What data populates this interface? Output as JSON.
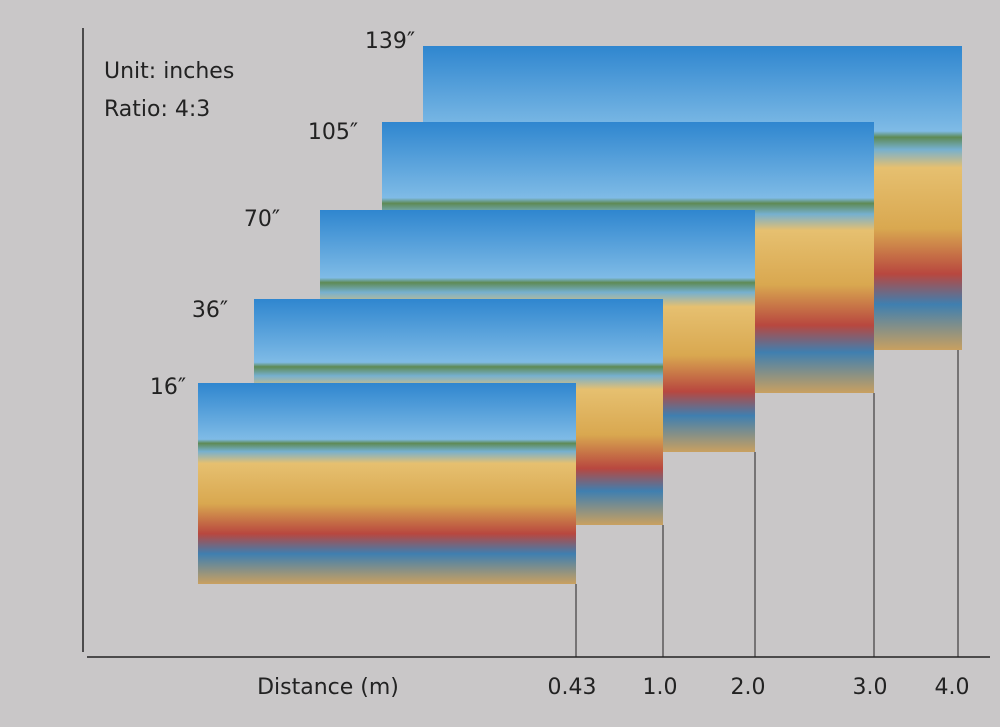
{
  "info": {
    "unit": "Unit: inches",
    "ratio": "Ratio: 4:3"
  },
  "screens": [
    {
      "size": "139″",
      "distance": "4.0"
    },
    {
      "size": "105″",
      "distance": "3.0"
    },
    {
      "size": "70″",
      "distance": "2.0"
    },
    {
      "size": "36″",
      "distance": "1.0"
    },
    {
      "size": "16″",
      "distance": "0.43"
    }
  ],
  "x_axis": {
    "label": "Distance (m)"
  }
}
